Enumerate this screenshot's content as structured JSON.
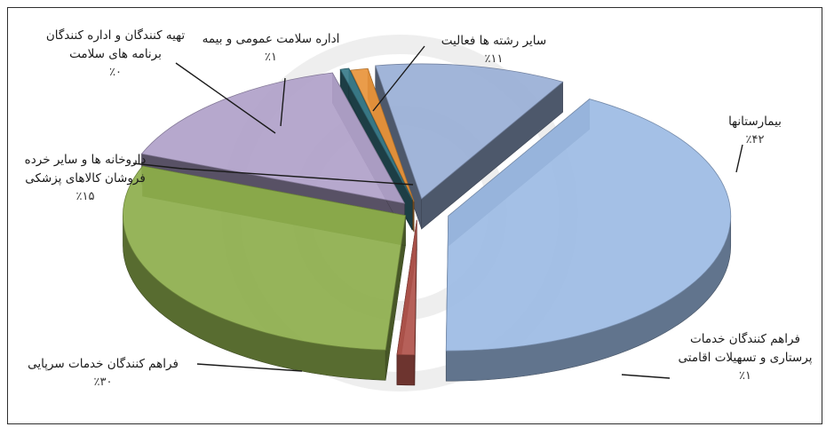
{
  "chart_data": {
    "type": "pie",
    "style": "3d-exploded",
    "slices": [
      {
        "label": "بیمارستانها",
        "percent_label": "٪۴۲",
        "value": 42,
        "color": "#9dbbe4"
      },
      {
        "label": "فراهم کنندگان خدمات پرستاری و تسهیلات اقامتی",
        "percent_label": "٪۱",
        "value": 1,
        "color": "#b0544c"
      },
      {
        "label": "فراهم کنندگان خدمات سرپایی",
        "percent_label": "٪۳۰",
        "value": 30,
        "color": "#8eae4e"
      },
      {
        "label": "داروخانه ها و سایر خرده فروشان کالاهای پزشکی",
        "percent_label": "٪۱۵",
        "value": 15,
        "color": "#b0a1c9"
      },
      {
        "label": "تهیه کنندگان و اداره کنندگان برنامه های سلامت",
        "percent_label": "٪۰",
        "value": 0.5,
        "color": "#3a7c8a"
      },
      {
        "label": "اداره سلامت عمومی و بیمه",
        "percent_label": "٪۱",
        "value": 1,
        "color": "#e8953c"
      },
      {
        "label": "سایر رشته ها فعالیت",
        "percent_label": "٪۱۱",
        "value": 11,
        "color": "#9aafd6"
      }
    ]
  }
}
